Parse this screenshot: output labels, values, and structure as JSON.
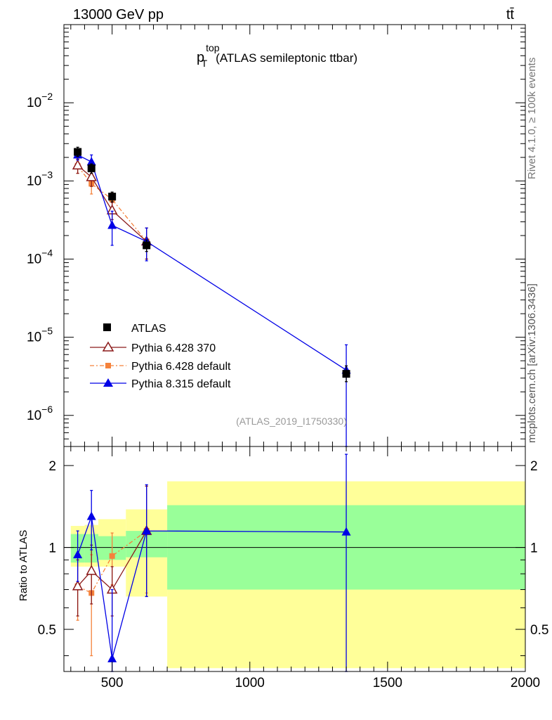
{
  "header": {
    "left_label": "13000 GeV pp",
    "right_label": "tt̄"
  },
  "side_labels": {
    "rivet": "Rivet 4.1.0, ≥ 100k events",
    "mcplots": "mcplots.cern.ch [arXiv:1306.3436]"
  },
  "colors": {
    "atlas": "#000000",
    "py6_370": "#8b1a1a",
    "py6_default": "#f5823b",
    "py8_default": "#0000e6",
    "band_inner": "#99ff99",
    "band_outer": "#ffff99"
  },
  "chart_data": [
    {
      "panel": "main",
      "type": "line",
      "title_main": "p",
      "title_sup": "top",
      "title_sub": "T",
      "title_rest": "(ATLAS semileptonic ttbar)",
      "analysis_label": "(ATLAS_2019_I1750330)",
      "log_y": true,
      "xlim": [
        325,
        2000
      ],
      "ylim": [
        4e-07,
        0.1
      ],
      "y_tick_labels": [
        {
          "value": 0.01,
          "base": "10",
          "exp": "−2"
        },
        {
          "value": 0.001,
          "base": "10",
          "exp": "−3"
        },
        {
          "value": 0.0001,
          "base": "10",
          "exp": "−4"
        },
        {
          "value": 1e-05,
          "base": "10",
          "exp": "−5"
        },
        {
          "value": 1e-06,
          "base": "10",
          "exp": "−6"
        }
      ],
      "legend": [
        {
          "key": "atlas",
          "label": "ATLAS"
        },
        {
          "key": "py6_370",
          "label": "Pythia 6.428 370"
        },
        {
          "key": "py6_default",
          "label": "Pythia 6.428 default"
        },
        {
          "key": "py8_default",
          "label": "Pythia 8.315 default"
        }
      ],
      "series": [
        {
          "key": "atlas",
          "name": "ATLAS",
          "marker": "square",
          "x": [
            375,
            425,
            500,
            625,
            1350
          ],
          "y": [
            0.00235,
            0.00145,
            0.00063,
            0.00015,
            3.4e-06
          ],
          "ylo": [
            0.00205,
            0.00125,
            0.00054,
            0.000125,
            2.7e-06
          ],
          "yhi": [
            0.0027,
            0.00165,
            0.00072,
            0.000175,
            4.3e-06
          ]
        },
        {
          "key": "py6_370",
          "name": "Pythia 6.428 370",
          "marker": "open-triangle",
          "x": [
            375,
            425,
            500,
            625
          ],
          "y": [
            0.00158,
            0.00112,
            0.00042,
            0.000168
          ],
          "ylo": [
            0.00125,
            0.00085,
            0.00032,
            0.0001
          ],
          "yhi": [
            0.0019,
            0.0014,
            0.00053,
            0.00025
          ]
        },
        {
          "key": "py6_default",
          "name": "Pythia 6.428 default",
          "marker": "square-small",
          "x": [
            375,
            425,
            500,
            625
          ],
          "y": [
            0.00155,
            0.00092,
            0.00058,
            0.000168
          ],
          "ylo": [
            0.00125,
            0.00068,
            0.00045,
            0.0001
          ],
          "yhi": [
            0.0019,
            0.00118,
            0.0007,
            0.00025
          ]
        },
        {
          "key": "py8_default",
          "name": "Pythia 8.315 default",
          "marker": "triangle",
          "x": [
            375,
            425,
            500,
            625,
            1350
          ],
          "y": [
            0.00215,
            0.00175,
            0.00027,
            0.000168,
            3.8e-06
          ],
          "ylo": [
            0.00185,
            0.00135,
            0.00015,
            9.5e-05,
            3e-07
          ],
          "yhi": [
            0.0025,
            0.00215,
            0.00041,
            0.00025,
            8e-06
          ]
        }
      ]
    },
    {
      "panel": "ratio",
      "type": "line",
      "ylabel": "Ratio to ATLAS",
      "log_y": true,
      "xlim": [
        325,
        2000
      ],
      "ylim": [
        0.35,
        2.35
      ],
      "x_ticks": [
        500,
        1000,
        1500,
        2000
      ],
      "x_tick_labels": [
        "500",
        "1000",
        "1500",
        "2000"
      ],
      "y_ticks": [
        0.5,
        1,
        2
      ],
      "y_tick_labels": [
        "0.5",
        "1",
        "2"
      ],
      "bands": {
        "edges": [
          350,
          400,
          450,
          550,
          700,
          2000
        ],
        "inner_lo": [
          0.88,
          0.88,
          0.9,
          0.92,
          0.7
        ],
        "inner_hi": [
          1.12,
          1.12,
          1.1,
          1.15,
          1.43
        ],
        "outer_lo": [
          0.85,
          0.85,
          0.85,
          0.66,
          0.36
        ],
        "outer_hi": [
          1.2,
          1.21,
          1.27,
          1.38,
          1.75
        ]
      },
      "series": [
        {
          "key": "py6_370",
          "marker": "open-triangle",
          "x": [
            375,
            425,
            500,
            625
          ],
          "y": [
            0.72,
            0.82,
            0.7,
            1.15
          ],
          "ylo": [
            0.56,
            0.62,
            0.56,
            0.66
          ],
          "yhi": [
            0.9,
            1.02,
            0.85,
            1.68
          ]
        },
        {
          "key": "py6_default",
          "marker": "square-small",
          "x": [
            375,
            425,
            500,
            625
          ],
          "y": [
            0.72,
            0.68,
            0.93,
            1.15
          ],
          "ylo": [
            0.54,
            0.4,
            0.73,
            0.68
          ],
          "yhi": [
            0.9,
            0.94,
            1.13,
            1.68
          ]
        },
        {
          "key": "py8_default",
          "marker": "triangle",
          "x": [
            375,
            425,
            500,
            625,
            1350
          ],
          "y": [
            0.94,
            1.3,
            0.39,
            1.15,
            1.14
          ],
          "ylo": [
            0.75,
            0.98,
            0.35,
            0.66,
            0.35
          ],
          "yhi": [
            1.15,
            1.62,
            0.7,
            1.7,
            2.2
          ]
        }
      ]
    }
  ]
}
